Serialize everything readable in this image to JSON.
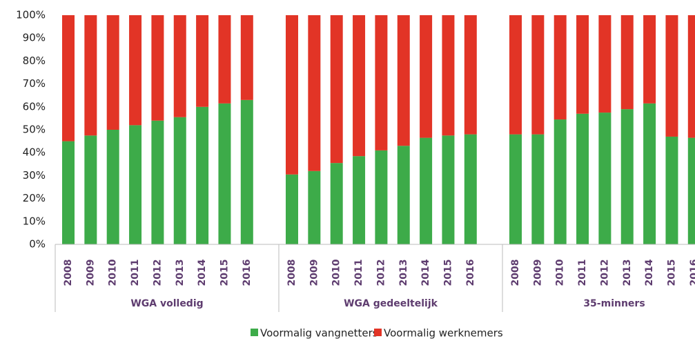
{
  "chart_data": {
    "type": "stacked-bar",
    "groups": [
      {
        "name": "WGA volledig",
        "categories": [
          "2008",
          "2009",
          "2010",
          "2011",
          "2012",
          "2013",
          "2014",
          "2015",
          "2016"
        ]
      },
      {
        "name": "WGA gedeeltelijk",
        "categories": [
          "2008",
          "2009",
          "2010",
          "2011",
          "2012",
          "2013",
          "2014",
          "2015",
          "2016"
        ]
      },
      {
        "name": "35-minners",
        "categories": [
          "2008",
          "2009",
          "2010",
          "2011",
          "2012",
          "2013",
          "2014",
          "2015",
          "2016"
        ]
      }
    ],
    "series": [
      {
        "name": "Voormalig vangnetters",
        "color": "#3dab49",
        "values": [
          45,
          47.5,
          50,
          52,
          54,
          55.5,
          60,
          61.5,
          63,
          30.5,
          32,
          35.5,
          38.5,
          41,
          43,
          46.5,
          47.5,
          48,
          48,
          48,
          54.5,
          57,
          57.5,
          59,
          61.5,
          47,
          46.5
        ]
      },
      {
        "name": "Voormalig werknemers",
        "color": "#e23426",
        "values": [
          55,
          52.5,
          50,
          48,
          46,
          44.5,
          40,
          38.5,
          37,
          69.5,
          68,
          64.5,
          61.5,
          59,
          57,
          53.5,
          52.5,
          52,
          52,
          52,
          45.5,
          43,
          42.5,
          41,
          38.5,
          53,
          53.5
        ]
      }
    ],
    "ylim": [
      0,
      100
    ],
    "yticks": [
      {
        "value": 0,
        "label": "0%"
      },
      {
        "value": 10,
        "label": "10%"
      },
      {
        "value": 20,
        "label": "20%"
      },
      {
        "value": 30,
        "label": "30%"
      },
      {
        "value": 40,
        "label": "40%"
      },
      {
        "value": 50,
        "label": "50%"
      },
      {
        "value": 60,
        "label": "60%"
      },
      {
        "value": 70,
        "label": "70%"
      },
      {
        "value": 80,
        "label": "80%"
      },
      {
        "value": 90,
        "label": "90%"
      },
      {
        "value": 100,
        "label": "100%"
      }
    ]
  }
}
